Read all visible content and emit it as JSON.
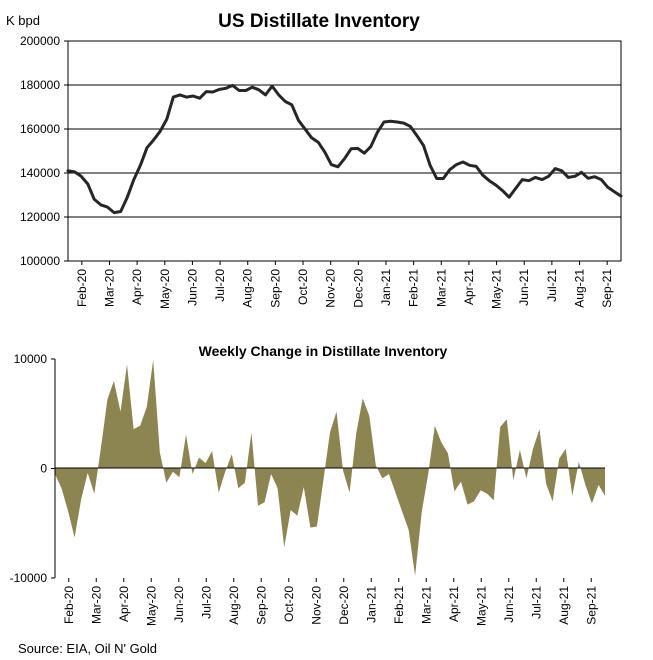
{
  "source": "Source: EIA, Oil N' Gold",
  "chart_data": [
    {
      "type": "line",
      "title": "US Distillate Inventory",
      "ylabel": "K bpd",
      "ylim": [
        100000,
        200000
      ],
      "yticks": [
        "200000",
        "180000",
        "160000",
        "140000",
        "120000",
        "100000"
      ],
      "ytick_values": [
        200000,
        180000,
        160000,
        140000,
        120000,
        100000
      ],
      "xticks": [
        "Feb-20",
        "Mar-20",
        "Apr-20",
        "May-20",
        "Jun-20",
        "Jul-20",
        "Aug-20",
        "Sep-20",
        "Oct-20",
        "Nov-20",
        "Dec-20",
        "Jan-21",
        "Feb-21",
        "Mar-21",
        "Apr-21",
        "May-21",
        "Jun-21",
        "Jul-21",
        "Aug-21",
        "Sep-21"
      ],
      "line_color": "#262626",
      "values": [
        141000,
        140500,
        138500,
        135000,
        128000,
        125500,
        124500,
        122000,
        122500,
        129000,
        137000,
        143500,
        151500,
        155000,
        159000,
        164500,
        174500,
        175500,
        174500,
        175000,
        174000,
        177000,
        176800,
        178000,
        178500,
        179800,
        177500,
        177500,
        179000,
        177800,
        175500,
        179500,
        175500,
        172500,
        171000,
        164000,
        160000,
        156000,
        154000,
        149500,
        143800,
        142800,
        146500,
        151000,
        151200,
        149000,
        152000,
        158500,
        163200,
        163500,
        163200,
        162700,
        161200,
        157000,
        152500,
        143500,
        137500,
        137500,
        141500,
        143800,
        145000,
        143500,
        143000,
        139000,
        136500,
        134500,
        132000,
        129000,
        133000,
        137000,
        136500,
        138000,
        137000,
        138500,
        142000,
        141000,
        138000,
        138500,
        140300,
        137600,
        138300,
        137000,
        133500,
        131500,
        129500
      ]
    },
    {
      "type": "area",
      "title": "Weekly Change in Distillate Inventory",
      "ylim": [
        -10000,
        10000
      ],
      "yticks": [
        "10000",
        "0",
        "-10000"
      ],
      "ytick_values": [
        10000,
        0,
        -10000
      ],
      "xticks": [
        "Feb-20",
        "Mar-20",
        "Apr-20",
        "May-20",
        "Jun-20",
        "Jul-20",
        "Aug-20",
        "Sep-20",
        "Oct-20",
        "Nov-20",
        "Dec-20",
        "Jan-21",
        "Feb-21",
        "Mar-21",
        "Apr-21",
        "May-21",
        "Jun-21",
        "Jul-21",
        "Aug-21",
        "Sep-21"
      ],
      "fill_color": "#8c8552",
      "values": [
        -500,
        -1800,
        -3900,
        -6300,
        -2800,
        -400,
        -2300,
        1800,
        6300,
        8000,
        5200,
        9500,
        3600,
        3900,
        5600,
        9900,
        1500,
        -1300,
        -300,
        -800,
        3100,
        -500,
        1000,
        500,
        1600,
        -2200,
        -300,
        1300,
        -1800,
        -1300,
        3300,
        -3400,
        -3100,
        -500,
        -1800,
        -7200,
        -3800,
        -4300,
        -1700,
        -5400,
        -5300,
        -1000,
        3300,
        5200,
        -200,
        -2200,
        3200,
        6400,
        4800,
        300,
        -900,
        -500,
        -2200,
        -3900,
        -5600,
        -9800,
        -4000,
        -500,
        3900,
        2400,
        1400,
        -2100,
        -1200,
        -3300,
        -3000,
        -2000,
        -2300,
        -2900,
        3800,
        4500,
        -1100,
        1700,
        -900,
        1800,
        3600,
        -1400,
        -3000,
        900,
        1800,
        -2500,
        600,
        -1500,
        -3200,
        -1500,
        -2500
      ]
    }
  ]
}
